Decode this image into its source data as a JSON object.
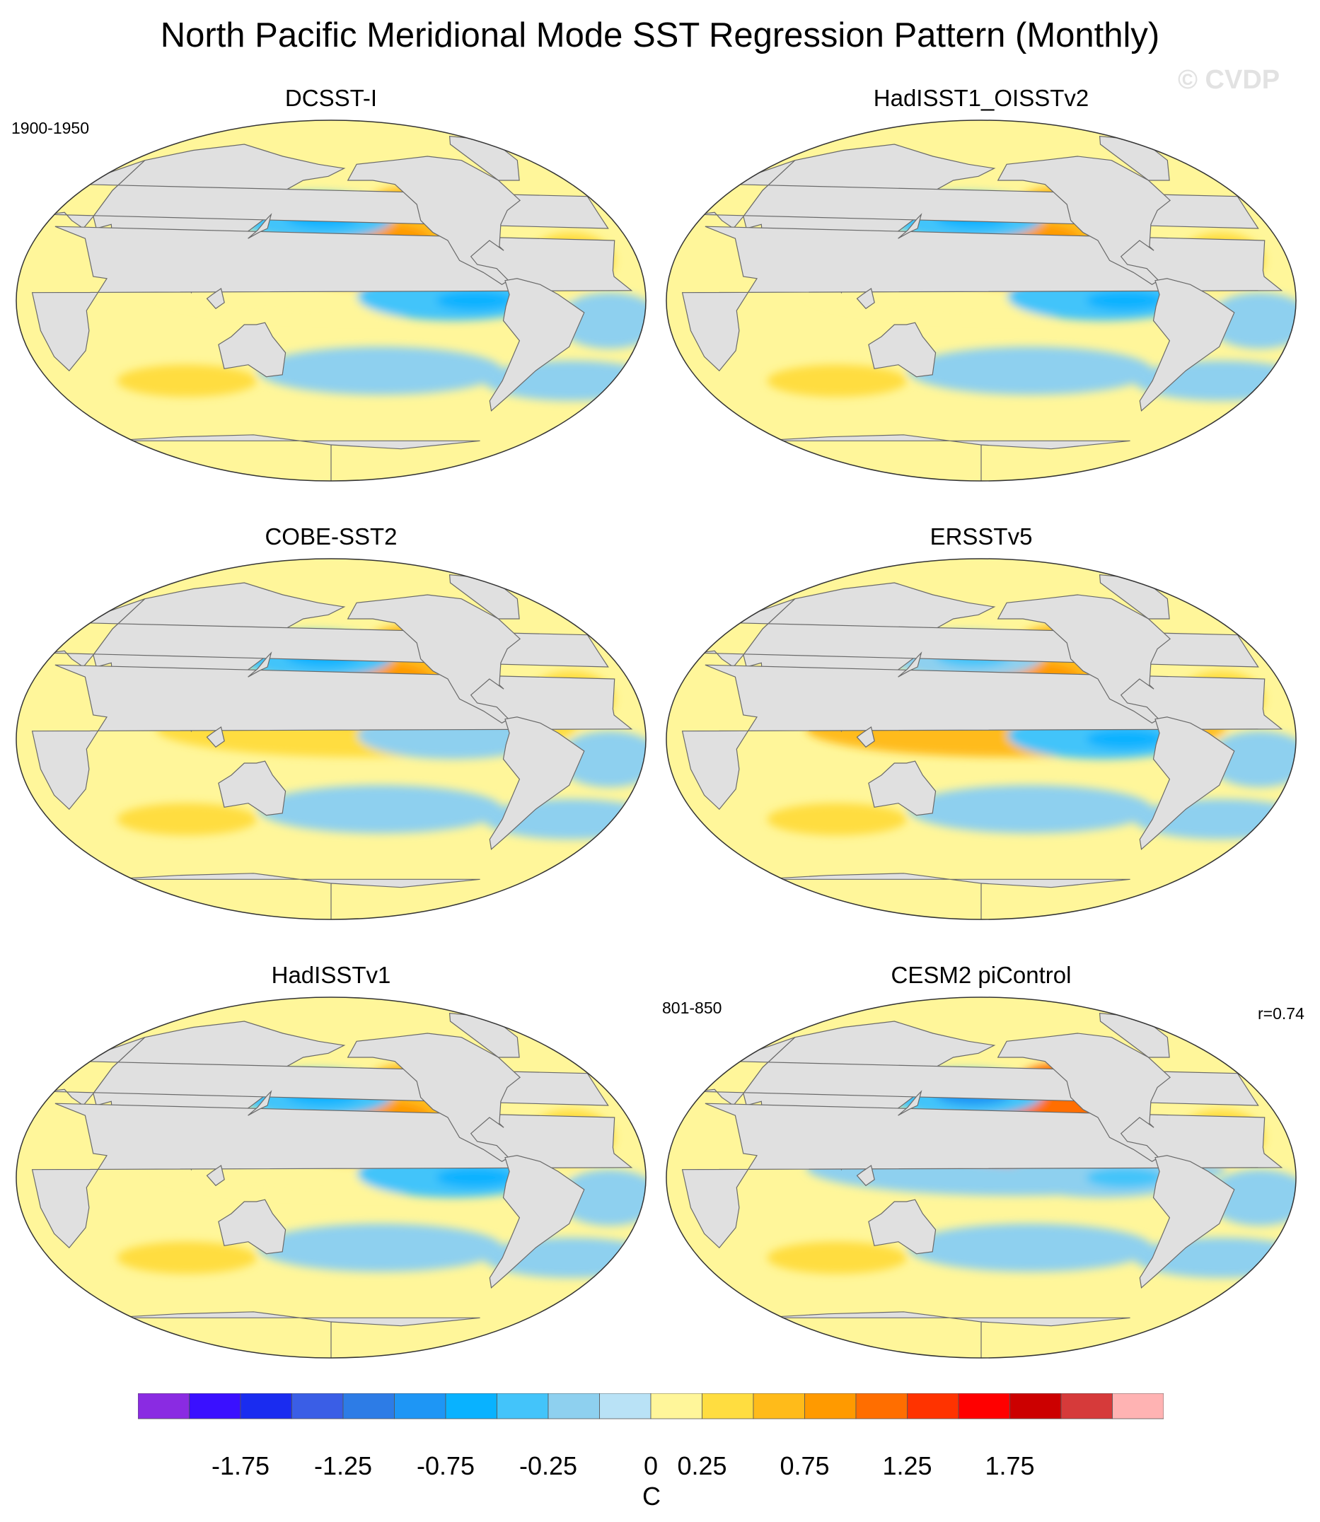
{
  "figure_title": "North Pacific Meridional Mode SST Regression Pattern (Monthly)",
  "copyright": "© CVDP",
  "colors": {
    "land": "#e0e0e0",
    "coast": "#6a6a6a",
    "levels": [
      "#8a2be2",
      "#3a10ff",
      "#1a2cf0",
      "#3a5ee6",
      "#2d7ce6",
      "#1e96f5",
      "#09b2ff",
      "#43c4fa",
      "#8ed0ef",
      "#b9e2f6",
      "#fff69a",
      "#ffdd40",
      "#ffbb1a",
      "#ff9a00",
      "#ff6e00",
      "#ff3300",
      "#ff0000",
      "#cc0000",
      "#d63a3a",
      "#ffb3b3"
    ]
  },
  "colorbar": {
    "ticks": [
      "-1.75",
      "-1.25",
      "-0.75",
      "-0.25",
      "0",
      "0.25",
      "0.75",
      "1.25",
      "1.75"
    ],
    "units": "C"
  },
  "chart_data": {
    "type": "heatmap",
    "variable": "SST regression onto North Pacific Meridional Mode index",
    "units": "C",
    "contour_levels": [
      -2.0,
      -1.75,
      -1.5,
      -1.25,
      -1.0,
      -0.75,
      -0.5,
      -0.25,
      -0.1,
      0,
      0.1,
      0.25,
      0.5,
      0.75,
      1.0,
      1.25,
      1.5,
      1.75,
      2.0
    ],
    "panels": [
      {
        "title": "DCSST-I",
        "period": "1900-1950",
        "features": {
          "npac_cold": -0.6,
          "subtrop_warm": 0.4,
          "etp_cold": -0.6,
          "trop_warm": 0.1
        }
      },
      {
        "title": "HadISST1_OISSTv2",
        "features": {
          "npac_cold": -0.6,
          "subtrop_warm": 0.4,
          "etp_cold": -0.6,
          "trop_warm": 0.1
        }
      },
      {
        "title": "COBE-SST2",
        "features": {
          "npac_cold": -0.5,
          "subtrop_warm": 0.35,
          "etp_cold": -0.2,
          "trop_warm": 0.15
        }
      },
      {
        "title": "ERSSTv5",
        "features": {
          "npac_cold": -0.3,
          "subtrop_warm": 0.45,
          "etp_cold": -0.7,
          "trop_warm": 0.3
        }
      },
      {
        "title": "HadISSTv1",
        "features": {
          "npac_cold": -0.6,
          "subtrop_warm": 0.35,
          "etp_cold": -0.5,
          "trop_warm": 0.1
        }
      },
      {
        "title": "CESM2 piControl",
        "period": "801-850",
        "correlation": "r=0.74",
        "features": {
          "npac_cold": -0.8,
          "subtrop_warm": 0.8,
          "etp_cold": -0.4,
          "trop_warm": -0.2
        }
      }
    ]
  }
}
